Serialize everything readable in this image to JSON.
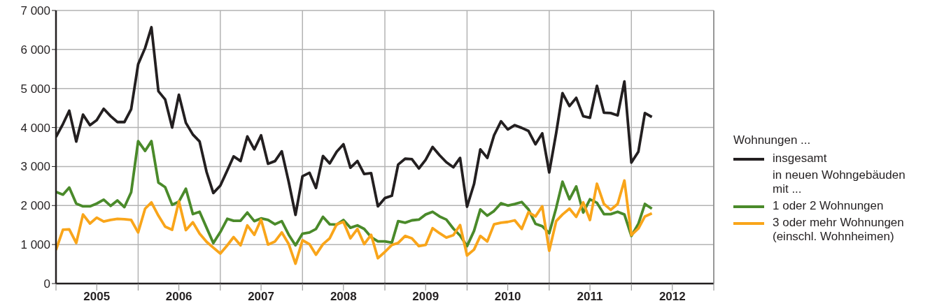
{
  "chart_data": {
    "type": "line",
    "x": [
      "2005-01",
      "2005-02",
      "2005-03",
      "2005-04",
      "2005-05",
      "2005-06",
      "2005-07",
      "2005-08",
      "2005-09",
      "2005-10",
      "2005-11",
      "2005-12",
      "2006-01",
      "2006-02",
      "2006-03",
      "2006-04",
      "2006-05",
      "2006-06",
      "2006-07",
      "2006-08",
      "2006-09",
      "2006-10",
      "2006-11",
      "2006-12",
      "2007-01",
      "2007-02",
      "2007-03",
      "2007-04",
      "2007-05",
      "2007-06",
      "2007-07",
      "2007-08",
      "2007-09",
      "2007-10",
      "2007-11",
      "2007-12",
      "2008-01",
      "2008-02",
      "2008-03",
      "2008-04",
      "2008-05",
      "2008-06",
      "2008-07",
      "2008-08",
      "2008-09",
      "2008-10",
      "2008-11",
      "2008-12",
      "2009-01",
      "2009-02",
      "2009-03",
      "2009-04",
      "2009-05",
      "2009-06",
      "2009-07",
      "2009-08",
      "2009-09",
      "2009-10",
      "2009-11",
      "2009-12",
      "2010-01",
      "2010-02",
      "2010-03",
      "2010-04",
      "2010-05",
      "2010-06",
      "2010-07",
      "2010-08",
      "2010-09",
      "2010-10",
      "2010-11",
      "2010-12",
      "2011-01",
      "2011-02",
      "2011-03",
      "2011-04",
      "2011-05",
      "2011-06",
      "2011-07",
      "2011-08",
      "2011-09",
      "2011-10",
      "2011-11",
      "2011-12",
      "2012-01",
      "2012-02",
      "2012-03",
      "2012-04"
    ],
    "series": [
      {
        "name": "insgesamt",
        "color": "#231f20",
        "values": [
          3760,
          4090,
          4430,
          3640,
          4330,
          4060,
          4190,
          4480,
          4290,
          4140,
          4140,
          4470,
          5620,
          6040,
          6570,
          4930,
          4720,
          4000,
          4840,
          4120,
          3820,
          3640,
          2860,
          2320,
          2510,
          2900,
          3260,
          3140,
          3770,
          3440,
          3800,
          3070,
          3140,
          3390,
          2600,
          1760,
          2750,
          2840,
          2450,
          3270,
          3080,
          3380,
          3570,
          2970,
          3140,
          2810,
          2830,
          1980,
          2190,
          2250,
          3050,
          3200,
          3190,
          2950,
          3170,
          3500,
          3290,
          3110,
          2980,
          3220,
          1970,
          2550,
          3440,
          3220,
          3800,
          4160,
          3950,
          4060,
          3990,
          3910,
          3570,
          3850,
          2850,
          3860,
          4880,
          4550,
          4760,
          4290,
          4250,
          5070,
          4380,
          4370,
          4310,
          5180,
          3100,
          3380,
          4370,
          4270
        ]
      },
      {
        "name": "1 oder 2 Wohnungen",
        "color": "#4a8a2a",
        "values": [
          2350,
          2280,
          2460,
          2050,
          1980,
          1980,
          2050,
          2150,
          1990,
          2130,
          1960,
          2340,
          3650,
          3400,
          3650,
          2590,
          2470,
          2020,
          2100,
          2430,
          1780,
          1840,
          1430,
          1040,
          1320,
          1660,
          1610,
          1610,
          1820,
          1600,
          1670,
          1630,
          1520,
          1600,
          1250,
          980,
          1280,
          1310,
          1400,
          1710,
          1520,
          1510,
          1630,
          1430,
          1490,
          1400,
          1190,
          1080,
          1080,
          1050,
          1600,
          1560,
          1620,
          1640,
          1770,
          1840,
          1720,
          1640,
          1410,
          1230,
          960,
          1350,
          1900,
          1740,
          1860,
          2060,
          2000,
          2040,
          2090,
          1900,
          1530,
          1470,
          1290,
          1940,
          2610,
          2160,
          2490,
          1820,
          2160,
          2070,
          1780,
          1780,
          1840,
          1770,
          1220,
          1530,
          2040,
          1920
        ]
      },
      {
        "name": "3 oder mehr Wohnungen (einschl. Wohnheimen)",
        "color": "#f9a51a",
        "values": [
          860,
          1380,
          1390,
          1040,
          1770,
          1540,
          1690,
          1590,
          1630,
          1660,
          1650,
          1630,
          1310,
          1920,
          2080,
          1740,
          1460,
          1380,
          2110,
          1370,
          1570,
          1280,
          1070,
          920,
          770,
          980,
          1190,
          980,
          1490,
          1250,
          1640,
          1000,
          1080,
          1310,
          1010,
          510,
          1110,
          1010,
          740,
          1010,
          1160,
          1520,
          1580,
          1160,
          1400,
          1010,
          1250,
          650,
          810,
          990,
          1040,
          1220,
          1160,
          960,
          990,
          1420,
          1290,
          1180,
          1240,
          1500,
          720,
          870,
          1220,
          1080,
          1520,
          1560,
          1580,
          1620,
          1400,
          1830,
          1720,
          1980,
          840,
          1600,
          1770,
          1920,
          1710,
          2080,
          1630,
          2560,
          2040,
          1890,
          2040,
          2640,
          1240,
          1410,
          1720,
          1800
        ]
      }
    ],
    "xlim": [
      "2005-01",
      "2013-01"
    ],
    "xticks": [
      {
        "value": "2005-01",
        "label": null
      },
      {
        "value": "2005-07",
        "label": "2005"
      },
      {
        "value": "2006-01",
        "label": null
      },
      {
        "value": "2006-07",
        "label": "2006"
      },
      {
        "value": "2007-01",
        "label": null
      },
      {
        "value": "2007-07",
        "label": "2007"
      },
      {
        "value": "2008-01",
        "label": null
      },
      {
        "value": "2008-07",
        "label": "2008"
      },
      {
        "value": "2009-01",
        "label": null
      },
      {
        "value": "2009-07",
        "label": "2009"
      },
      {
        "value": "2010-01",
        "label": null
      },
      {
        "value": "2010-07",
        "label": "2010"
      },
      {
        "value": "2011-01",
        "label": null
      },
      {
        "value": "2011-07",
        "label": "2011"
      },
      {
        "value": "2012-01",
        "label": null
      },
      {
        "value": "2012-07",
        "label": "2012"
      },
      {
        "value": "2013-01",
        "label": null
      }
    ],
    "ylim": [
      0,
      7000
    ],
    "yticks": [
      0,
      {
        "value": 1000,
        "label": "1 000"
      },
      {
        "value": 2000,
        "label": "2 000"
      },
      {
        "value": 3000,
        "label": "3 000"
      },
      {
        "value": 4000,
        "label": "4 000"
      },
      {
        "value": 5000,
        "label": "5 000"
      },
      {
        "value": 6000,
        "label": "6 000"
      },
      {
        "value": 7000,
        "label": "7 000"
      }
    ],
    "grid": true,
    "legend": "right",
    "legend_title": "Wohnungen ...",
    "annotations": [
      "in neuen Wohngebäuden mit ..."
    ],
    "marker": "none",
    "line_style": "solid"
  }
}
